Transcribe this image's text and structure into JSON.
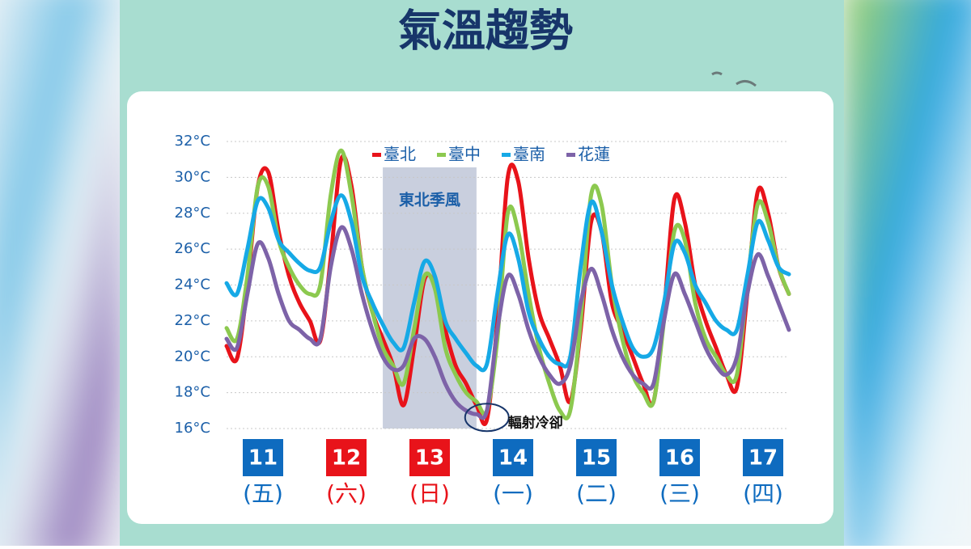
{
  "chart_data": {
    "type": "line",
    "title": "氣溫趨勢",
    "ylim": [
      16,
      32
    ],
    "yticks": [
      {
        "value": 16,
        "label": "16°C"
      },
      {
        "value": 18,
        "label": "18°C"
      },
      {
        "value": 20,
        "label": "20°C"
      },
      {
        "value": 22,
        "label": "22°C"
      },
      {
        "value": 24,
        "label": "24°C"
      },
      {
        "value": 26,
        "label": "26°C"
      },
      {
        "value": 28,
        "label": "28°C"
      },
      {
        "value": 30,
        "label": "30°C"
      },
      {
        "value": 32,
        "label": "32°C"
      }
    ],
    "grid": true,
    "days": [
      {
        "date": "11",
        "weekday": "(五)",
        "color": "#0e6bbf"
      },
      {
        "date": "12",
        "weekday": "(六)",
        "color": "#e8131a"
      },
      {
        "date": "13",
        "weekday": "(日)",
        "color": "#e8131a"
      },
      {
        "date": "14",
        "weekday": "(一)",
        "color": "#0e6bbf"
      },
      {
        "date": "15",
        "weekday": "(二)",
        "color": "#0e6bbf"
      },
      {
        "date": "16",
        "weekday": "(三)",
        "color": "#0e6bbf"
      },
      {
        "date": "17",
        "weekday": "(四)",
        "color": "#0e6bbf"
      }
    ],
    "shade": {
      "label": "東北季風",
      "start_index": 15,
      "end_index": 24
    },
    "annotation": {
      "text": "輻射冷卻",
      "index": 25,
      "y": 16.8
    },
    "series": [
      {
        "name": "臺北",
        "color": "#e8131a",
        "values": [
          20.6,
          19.9,
          24,
          29.5,
          30.3,
          27,
          24.5,
          23,
          22,
          20.9,
          25.5,
          31,
          29.5,
          25,
          22.5,
          21,
          19.5,
          17.3,
          20.5,
          24.3,
          24,
          21.5,
          19.5,
          18.5,
          17.3,
          16.5,
          22,
          30,
          29.8,
          25.5,
          22.5,
          21,
          19.5,
          17.5,
          21.5,
          27.5,
          27,
          23,
          21.5,
          20,
          18.5,
          17.5,
          22.5,
          28.8,
          27.5,
          24,
          22,
          20.5,
          19,
          18.3,
          23.5,
          29.2,
          28,
          25,
          23.5
        ]
      },
      {
        "name": "臺中",
        "color": "#8cc94f",
        "values": [
          21.6,
          21,
          24.5,
          29.5,
          29.5,
          26.5,
          25,
          24,
          23.5,
          24,
          29,
          31.5,
          29,
          25,
          22.5,
          20.5,
          19.5,
          18.5,
          21.5,
          24.5,
          23.8,
          20.5,
          19,
          18,
          17.5,
          17,
          21,
          28,
          27,
          23.5,
          20.5,
          18.5,
          17,
          17,
          22,
          29,
          28.5,
          24,
          21,
          19,
          18,
          17.5,
          22,
          27,
          26.5,
          23,
          21,
          20,
          19,
          19,
          24,
          28.5,
          27.5,
          25,
          23.5
        ]
      },
      {
        "name": "臺南",
        "color": "#16a9e6",
        "values": [
          24.1,
          23.5,
          26,
          28.7,
          28.3,
          26.5,
          25.8,
          25.2,
          24.8,
          25,
          27.5,
          29,
          27.5,
          24.5,
          23,
          21.8,
          20.8,
          20.5,
          23,
          25.3,
          24.5,
          22,
          21,
          20.2,
          19.5,
          19.6,
          23.5,
          26.8,
          25.5,
          22.5,
          21,
          20,
          19.6,
          20,
          25,
          28.6,
          27,
          24,
          22,
          20.5,
          20,
          20.5,
          23,
          26.3,
          25.8,
          24,
          23,
          22,
          21.5,
          21.5,
          24.5,
          27.5,
          26.5,
          25,
          24.6
        ]
      },
      {
        "name": "花蓮",
        "color": "#7d63a8",
        "values": [
          21,
          20.5,
          23.5,
          26.3,
          25.5,
          23.5,
          22,
          21.5,
          21,
          21,
          25,
          27.2,
          26,
          23.5,
          21.5,
          20,
          19.3,
          19.5,
          21,
          21,
          20,
          18.5,
          17.5,
          17,
          16.8,
          17,
          21.5,
          24.5,
          23.5,
          21.5,
          20,
          19,
          18.5,
          19.5,
          23,
          24.9,
          23.5,
          21.5,
          20,
          19,
          18.5,
          18.5,
          22,
          24.6,
          23.5,
          22,
          20.5,
          19.5,
          19,
          20,
          23.5,
          25.7,
          24.5,
          23,
          21.5
        ]
      }
    ]
  }
}
